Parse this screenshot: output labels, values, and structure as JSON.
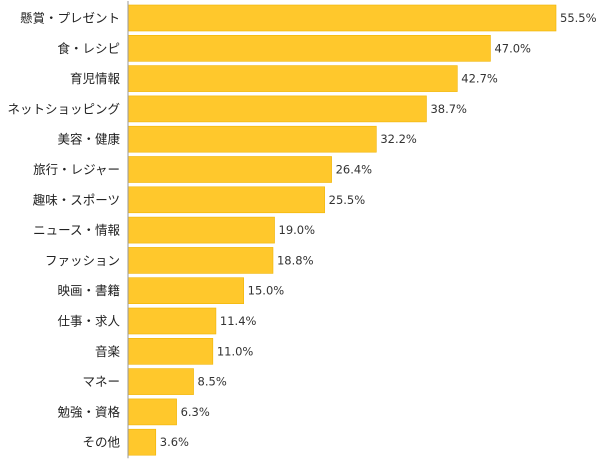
{
  "chart_data": {
    "type": "bar",
    "orientation": "horizontal",
    "categories": [
      "懸賞・プレゼント",
      "食・レシピ",
      "育児情報",
      "ネットショッピング",
      "美容・健康",
      "旅行・レジャー",
      "趣味・スポーツ",
      "ニュース・情報",
      "ファッション",
      "映画・書籍",
      "仕事・求人",
      "音楽",
      "マネー",
      "勉強・資格",
      "その他"
    ],
    "values": [
      55.5,
      47.0,
      42.7,
      38.7,
      32.2,
      26.4,
      25.5,
      19.0,
      18.8,
      15.0,
      11.4,
      11.0,
      8.5,
      6.3,
      3.6
    ],
    "value_labels": [
      "55.5%",
      "47.0%",
      "42.7%",
      "38.7%",
      "32.2%",
      "26.4%",
      "25.5%",
      "19.0%",
      "18.8%",
      "15.0%",
      "11.4%",
      "11.0%",
      "8.5%",
      "6.3%",
      "3.6%"
    ],
    "value_unit": "%",
    "xlim": [
      0,
      55.5
    ],
    "grid": false,
    "legend": "none",
    "bar_color": "#FFC82C",
    "bar_stroke": "#F0B300",
    "axis_color": "#999999",
    "title": "",
    "xlabel": "",
    "ylabel": ""
  }
}
